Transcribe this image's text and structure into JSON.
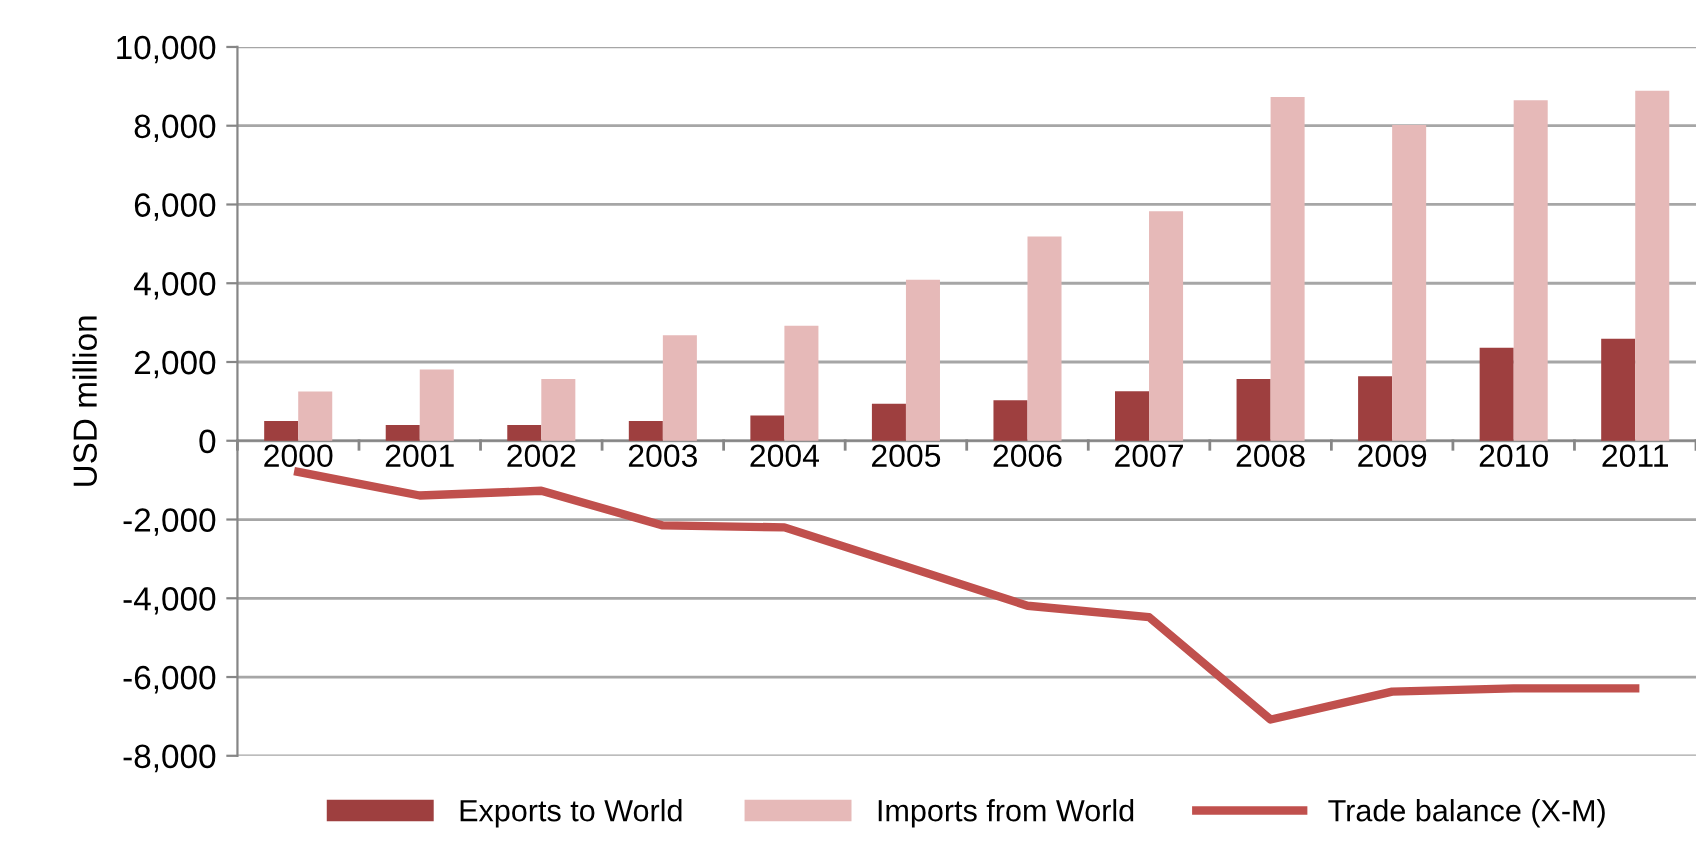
{
  "chart_data": {
    "type": "bar",
    "ylabel": "USD million",
    "categories": [
      "2000",
      "2001",
      "2002",
      "2003",
      "2004",
      "2005",
      "2006",
      "2007",
      "2008",
      "2009",
      "2010",
      "2011"
    ],
    "series": [
      {
        "name": "Exports to World",
        "color": "#9e3f3f",
        "values": [
          500,
          400,
          400,
          500,
          640,
          940,
          1030,
          1260,
          1570,
          1640,
          2360,
          2590
        ]
      },
      {
        "name": "Imports from World",
        "color": "#e6b9b8",
        "values": [
          1250,
          1810,
          1570,
          2680,
          2920,
          4090,
          5190,
          5830,
          8730,
          8020,
          8650,
          8890
        ]
      },
      {
        "name": "Trade balance (X-M)",
        "type": "line",
        "color": "#c0504d",
        "values": [
          -790,
          -1390,
          -1270,
          -2150,
          -2200,
          -3190,
          -4190,
          -4480,
          -7080,
          -6370,
          -6290,
          -6290
        ]
      }
    ],
    "ylim": [
      -8000,
      10000
    ],
    "yticks": [
      {
        "value": -8000,
        "label": "-8,000"
      },
      {
        "value": -6000,
        "label": "-6,000"
      },
      {
        "value": -4000,
        "label": "-4,000"
      },
      {
        "value": -2000,
        "label": "-2,000"
      },
      {
        "value": 0,
        "label": "0"
      },
      {
        "value": 2000,
        "label": "2,000"
      },
      {
        "value": 4000,
        "label": "4,000"
      },
      {
        "value": 6000,
        "label": "6,000"
      },
      {
        "value": 8000,
        "label": "8,000"
      },
      {
        "value": 10000,
        "label": "10,000"
      }
    ],
    "grid": "y",
    "legend": "bottom"
  }
}
